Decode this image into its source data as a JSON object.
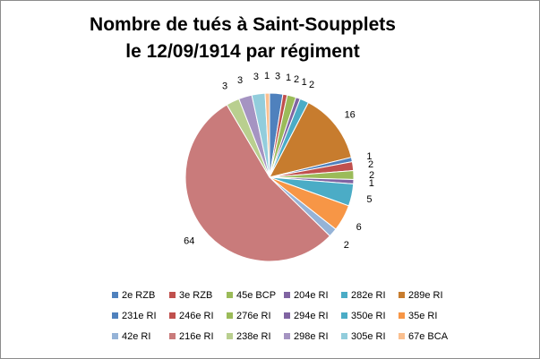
{
  "chart_data": {
    "type": "pie",
    "title": [
      "Nombre de tués à Saint-Soupplets",
      "le 12/09/1914  par régiment"
    ],
    "legend_position": "bottom",
    "series": [
      {
        "name": "2e RZB",
        "value": 3,
        "color": "#4F81BD"
      },
      {
        "name": "3e RZB",
        "value": 1,
        "color": "#C0504D"
      },
      {
        "name": "45e BCP",
        "value": 2,
        "color": "#9BBB59"
      },
      {
        "name": "204e RI",
        "value": 1,
        "color": "#8064A2"
      },
      {
        "name": "282e RI",
        "value": 2,
        "color": "#4BACC6"
      },
      {
        "name": "289e RI",
        "value": 16,
        "color": "#C77C2E"
      },
      {
        "name": "231e RI",
        "value": 1,
        "color": "#4F81BD"
      },
      {
        "name": "246e RI",
        "value": 2,
        "color": "#C0504D"
      },
      {
        "name": "276e RI",
        "value": 2,
        "color": "#9BBB59"
      },
      {
        "name": "294e RI",
        "value": 1,
        "color": "#8064A2"
      },
      {
        "name": "350e RI",
        "value": 5,
        "color": "#4BACC6"
      },
      {
        "name": "35e RI",
        "value": 6,
        "color": "#F79646"
      },
      {
        "name": "42e RI",
        "value": 2,
        "color": "#95B3D7"
      },
      {
        "name": "216e RI",
        "value": 64,
        "color": "#C97B7B"
      },
      {
        "name": "238e RI",
        "value": 3,
        "color": "#B9CF8F"
      },
      {
        "name": "298e RI",
        "value": 3,
        "color": "#A594C2"
      },
      {
        "name": "305e RI",
        "value": 3,
        "color": "#92CDDC"
      },
      {
        "name": "67e BCA",
        "value": 1,
        "color": "#FABF8F"
      }
    ]
  }
}
